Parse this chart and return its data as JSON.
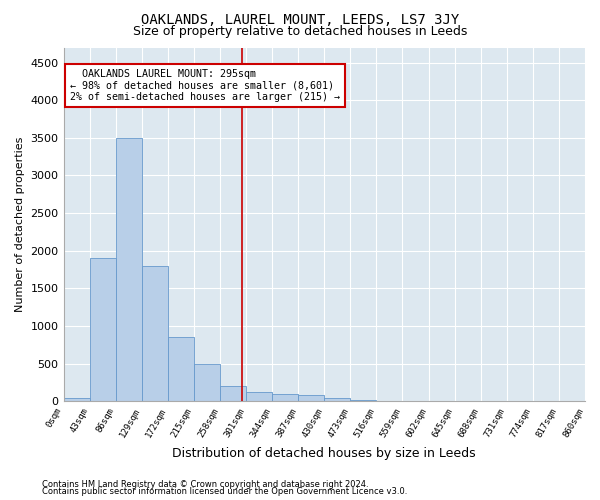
{
  "title": "OAKLANDS, LAUREL MOUNT, LEEDS, LS7 3JY",
  "subtitle": "Size of property relative to detached houses in Leeds",
  "xlabel": "Distribution of detached houses by size in Leeds",
  "ylabel": "Number of detached properties",
  "footnote1": "Contains HM Land Registry data © Crown copyright and database right 2024.",
  "footnote2": "Contains public sector information licensed under the Open Government Licence v3.0.",
  "annotation_line1": "  OAKLANDS LAUREL MOUNT: 295sqm  ",
  "annotation_line2": "← 98% of detached houses are smaller (8,601)",
  "annotation_line3": "2% of semi-detached houses are larger (215) →",
  "bar_color": "#b8cfe8",
  "bar_edge_color": "#6699cc",
  "vline_color": "#cc0000",
  "vline_x": 295,
  "bin_edges": [
    0,
    43,
    86,
    129,
    172,
    215,
    258,
    301,
    344,
    387,
    430,
    473,
    516,
    559,
    602,
    645,
    688,
    731,
    774,
    817,
    860
  ],
  "bar_heights": [
    50,
    1900,
    3500,
    1800,
    850,
    500,
    200,
    120,
    100,
    80,
    50,
    20,
    10,
    5,
    2,
    1,
    0,
    0,
    0,
    0
  ],
  "ylim": [
    0,
    4700
  ],
  "yticks": [
    0,
    500,
    1000,
    1500,
    2000,
    2500,
    3000,
    3500,
    4000,
    4500
  ],
  "background_color": "#ffffff",
  "plot_bg_color": "#dde8f0",
  "grid_color": "#ffffff",
  "title_fontsize": 10,
  "subtitle_fontsize": 9,
  "ylabel_fontsize": 8,
  "xlabel_fontsize": 9,
  "footnote_fontsize": 6,
  "ytick_fontsize": 8,
  "xtick_fontsize": 6.5
}
